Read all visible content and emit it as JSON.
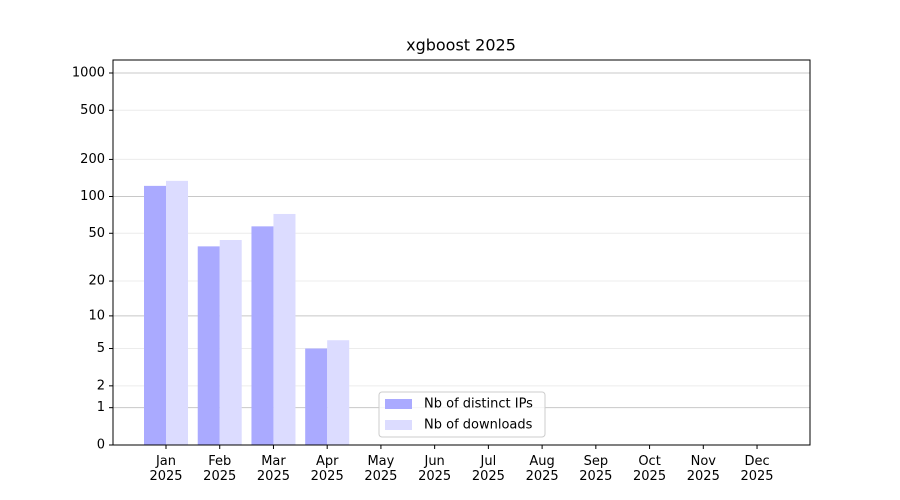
{
  "chart_data": {
    "type": "bar",
    "title": "xgboost 2025",
    "categories": [
      "Jan\n2025",
      "Feb\n2025",
      "Mar\n2025",
      "Apr\n2025",
      "May\n2025",
      "Jun\n2025",
      "Jul\n2025",
      "Aug\n2025",
      "Sep\n2025",
      "Oct\n2025",
      "Nov\n2025",
      "Dec\n2025"
    ],
    "series": [
      {
        "name": "Nb of distinct IPs",
        "color": "#aaaaff",
        "values": [
          122,
          39,
          57,
          5,
          null,
          null,
          null,
          null,
          null,
          null,
          null,
          null
        ]
      },
      {
        "name": "Nb of downloads",
        "color": "#dcdcff",
        "values": [
          134,
          44,
          72,
          6,
          null,
          null,
          null,
          null,
          null,
          null,
          null,
          null
        ]
      }
    ],
    "yscale": "log1p",
    "ylim": [
      0,
      1273
    ],
    "yticks": [
      0,
      1,
      2,
      5,
      10,
      20,
      50,
      100,
      200,
      500,
      1000
    ],
    "grid": true,
    "legend": "lower center"
  }
}
